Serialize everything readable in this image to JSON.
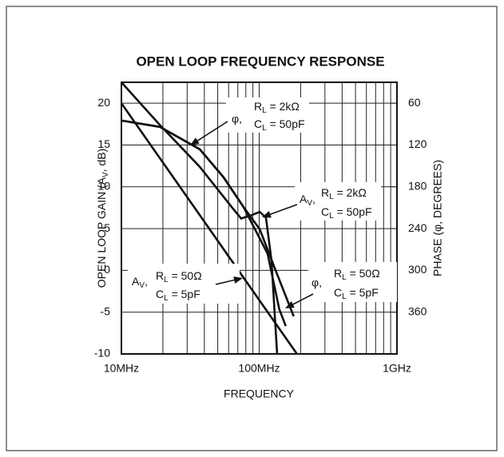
{
  "chart_data": {
    "type": "line",
    "title": "OPEN LOOP FREQUENCY RESPONSE",
    "x_label": "FREQUENCY",
    "y_label": "OPEN LOOP GAIN (AV, dB)",
    "y2_label": "PHASE (φ, DEGREES)",
    "x_log": true,
    "grid": true,
    "xlim": [
      10,
      1000
    ],
    "xticks": [
      {
        "value": 10,
        "label": "10MHz"
      },
      {
        "value": 100,
        "label": "100MHz"
      },
      {
        "value": 1000,
        "label": "1GHz"
      }
    ],
    "xminorticks": [
      20,
      30,
      40,
      50,
      60,
      70,
      80,
      90,
      200,
      300,
      400,
      500,
      600,
      700,
      800,
      900
    ],
    "ylim": [
      -10,
      22.5
    ],
    "yticks": [
      -10,
      -5,
      0,
      5,
      10,
      15,
      20
    ],
    "y2lim": [
      420,
      30
    ],
    "y2ticks": [
      60,
      120,
      180,
      240,
      300,
      360
    ],
    "series": [
      {
        "color": "#111111",
        "x": [
          10,
          19,
          37,
          63,
          74,
          88,
          101,
          112,
          123,
          130,
          135
        ],
        "values": [
          22.5,
          17.4,
          12.4,
          7.6,
          6.2,
          6.6,
          7.0,
          6.3,
          1.1,
          -5.7,
          -10
        ]
      },
      {
        "color": "#111111",
        "x": [
          10,
          188
        ],
        "values": [
          20,
          -10
        ]
      },
      {
        "color": "#111111",
        "axis": "y2",
        "x": [
          10,
          19,
          37,
          55,
          77,
          101,
          131,
          178
        ],
        "values": [
          85,
          94,
          126,
          166,
          209,
          241,
          299,
          366
        ]
      },
      {
        "color": "#111111",
        "axis": "y2",
        "x": [
          10,
          19,
          37,
          55,
          77,
          115,
          140,
          156
        ],
        "values": [
          85,
          94,
          126,
          166,
          209,
          276,
          356,
          380
        ]
      }
    ],
    "annotations": [
      {
        "symbol": "φ,",
        "lines": [
          "RL = 2kΩ",
          "CL = 50pF"
        ]
      },
      {
        "symbol": "AV,",
        "lines": [
          "RL = 2kΩ",
          "CL = 50pF"
        ]
      },
      {
        "symbol": "AV,",
        "lines": [
          "RL = 50Ω",
          "CL = 5pF"
        ]
      },
      {
        "symbol": "φ,",
        "lines": [
          "RL = 50Ω",
          "CL = 5pF"
        ]
      }
    ]
  }
}
